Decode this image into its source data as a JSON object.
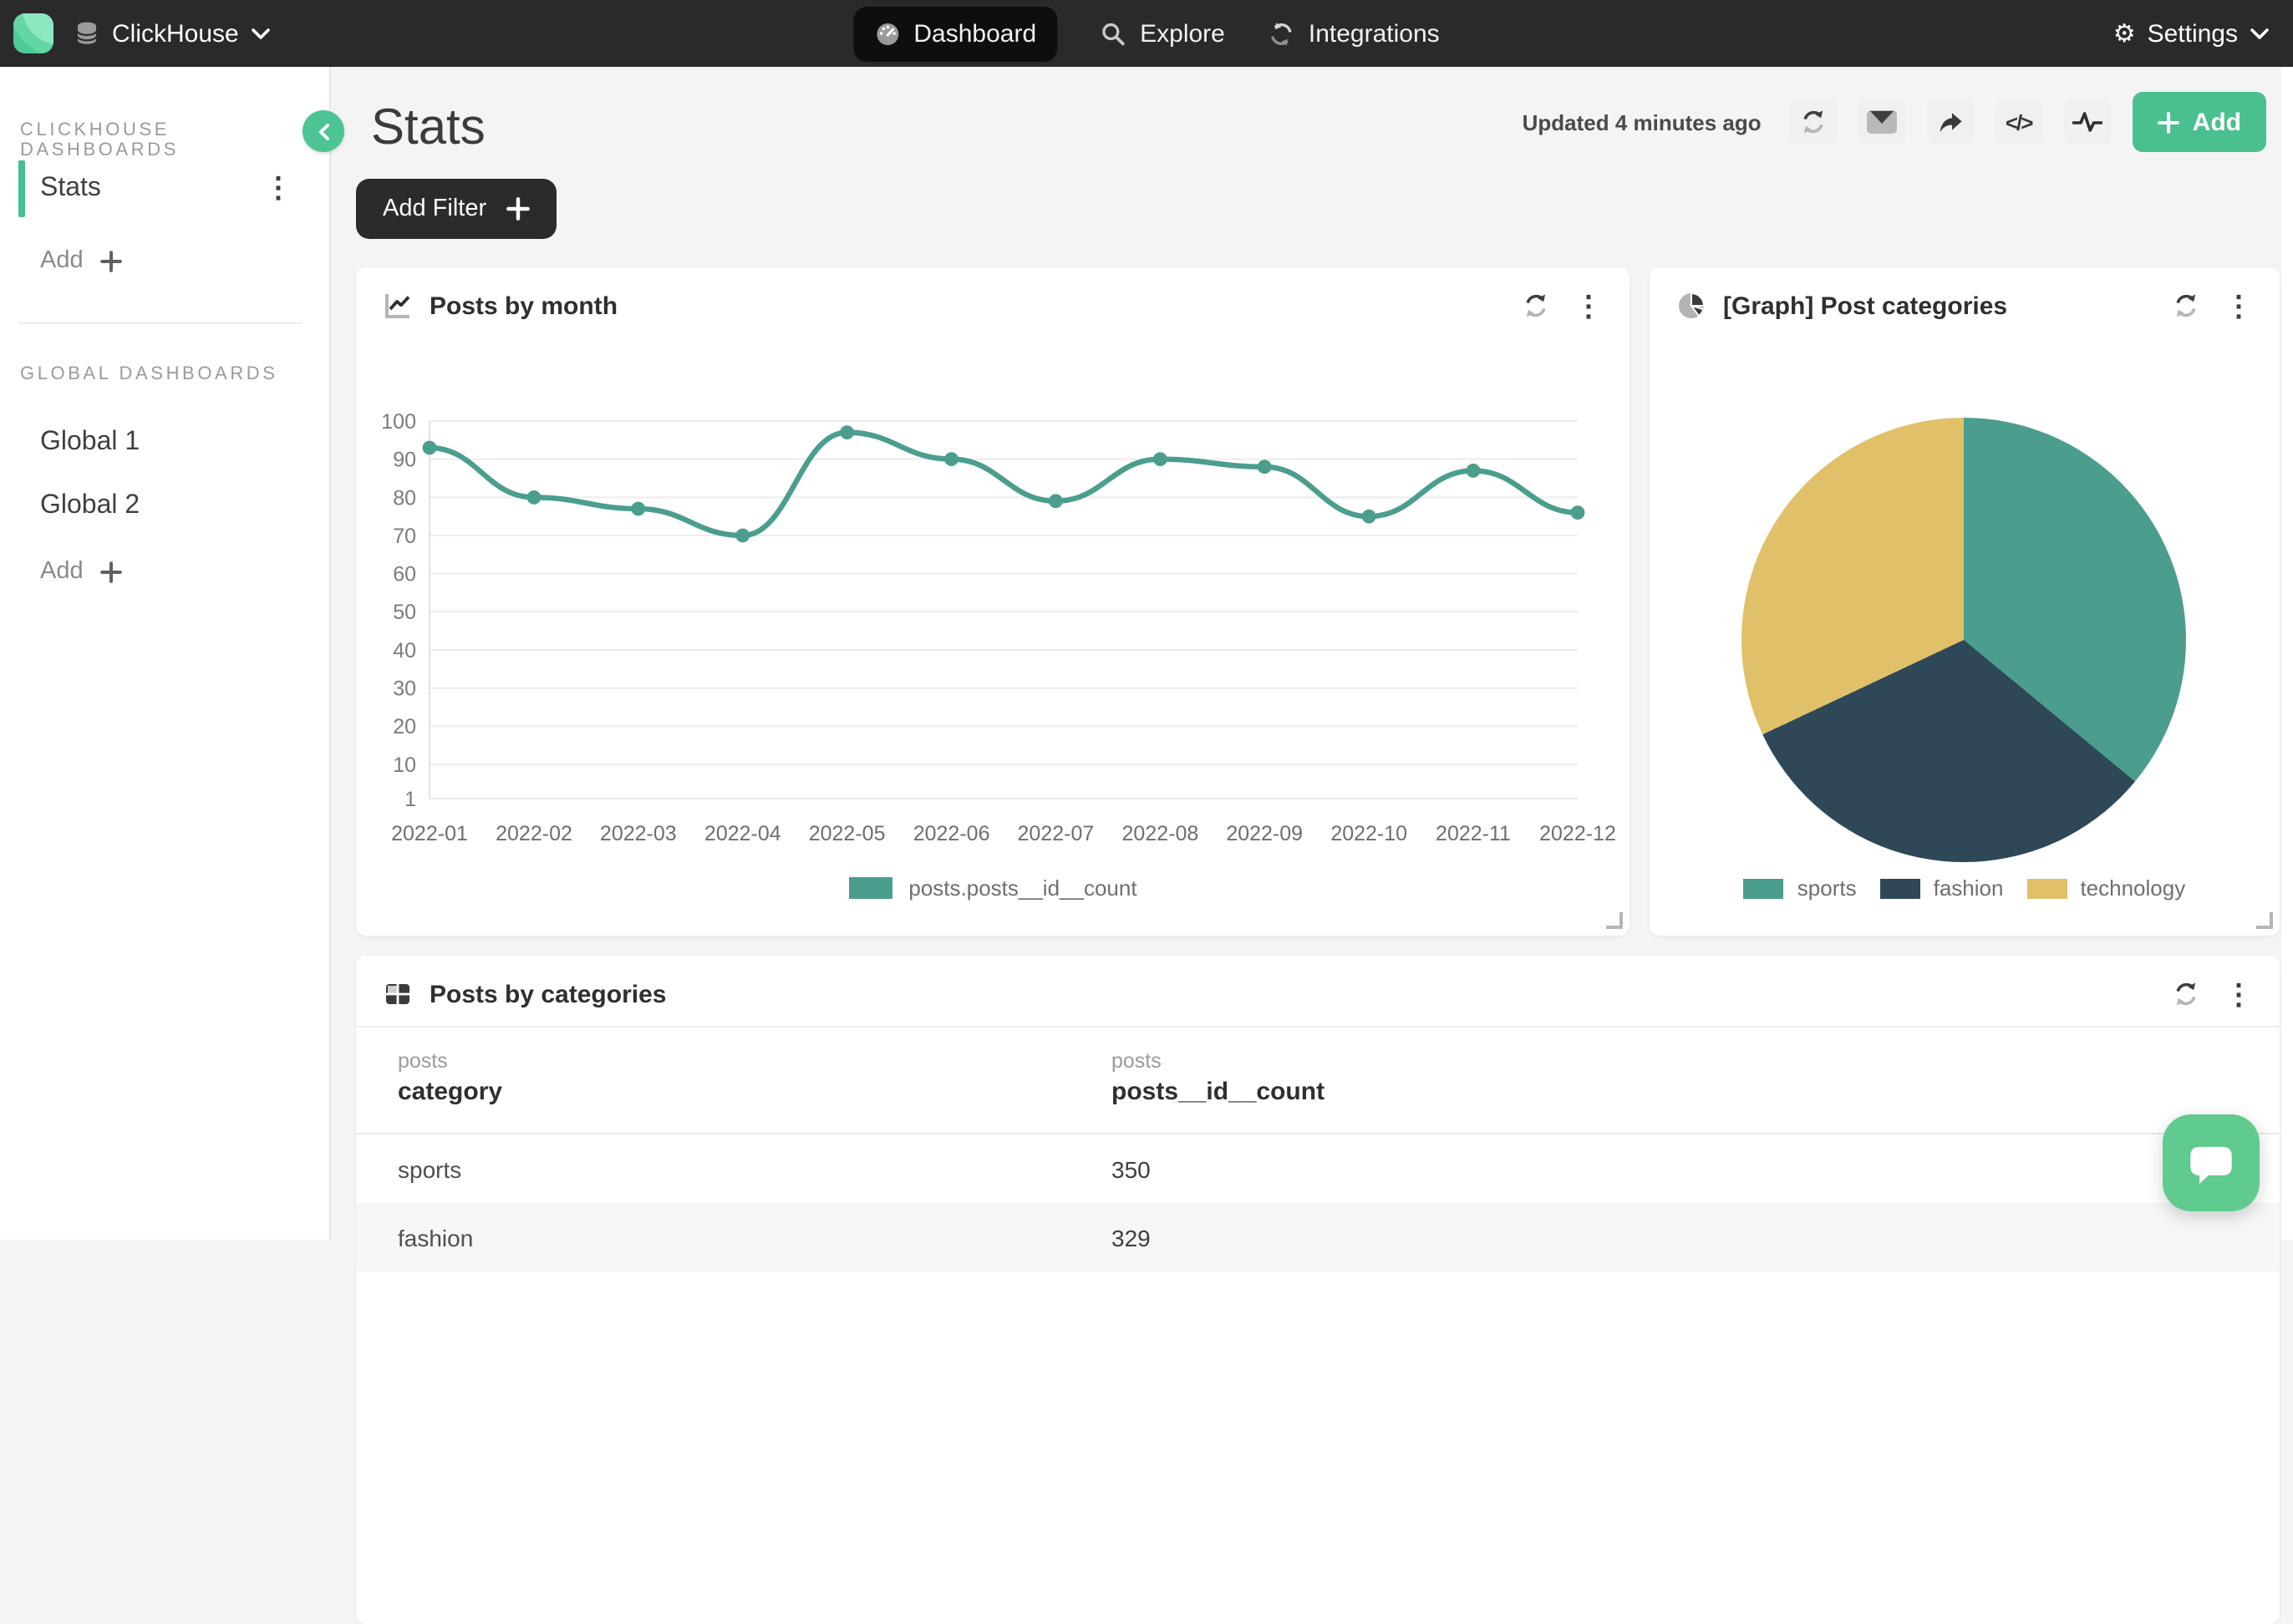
{
  "navbar": {
    "brand": "ClickHouse",
    "items": [
      {
        "label": "Dashboard",
        "active": true
      },
      {
        "label": "Explore",
        "active": false
      },
      {
        "label": "Integrations",
        "active": false
      }
    ],
    "settings_label": "Settings"
  },
  "sidebar": {
    "section1_title": "CLICKHOUSE DASHBOARDS",
    "section1_items": [
      {
        "label": "Stats",
        "active": true
      }
    ],
    "section1_add": "Add",
    "section2_title": "GLOBAL DASHBOARDS",
    "section2_items": [
      {
        "label": "Global 1"
      },
      {
        "label": "Global 2"
      }
    ],
    "section2_add": "Add"
  },
  "header": {
    "title": "Stats",
    "updated": "Updated 4 minutes ago",
    "add_label": "Add"
  },
  "filter_bar": {
    "add_filter_label": "Add Filter"
  },
  "cards": {
    "line": {
      "title": "Posts by month"
    },
    "pie": {
      "title": "[Graph] Post categories"
    },
    "table": {
      "title": "Posts by categories"
    }
  },
  "icons": {
    "gear": "⚙",
    "kebab": "⋮",
    "code": "</>"
  },
  "colors": {
    "accent_teal": "#4bc08f",
    "chart_teal": "#4b9e8e",
    "navy": "#2e4857",
    "gold": "#e0c169",
    "navbar_bg": "#2a2a2a",
    "page_bg": "#f4f4f4"
  },
  "chart_data": [
    {
      "id": "posts-by-month",
      "type": "line",
      "title": "Posts by month",
      "x": [
        "2022-01",
        "2022-02",
        "2022-03",
        "2022-04",
        "2022-05",
        "2022-06",
        "2022-07",
        "2022-08",
        "2022-09",
        "2022-10",
        "2022-11",
        "2022-12"
      ],
      "series": [
        {
          "name": "posts.posts__id__count",
          "color": "#4b9e8e",
          "values": [
            93,
            80,
            77,
            70,
            97,
            90,
            79,
            90,
            88,
            75,
            87,
            76
          ]
        }
      ],
      "ylim": [
        1,
        100
      ],
      "yticks": [
        100,
        90,
        80,
        70,
        60,
        50,
        40,
        30,
        20,
        10,
        1
      ],
      "grid": true,
      "legend_position": "bottom"
    },
    {
      "id": "post-categories",
      "type": "pie",
      "title": "[Graph] Post categories",
      "slices": [
        {
          "label": "sports",
          "percent": 36,
          "color": "#4b9e8e"
        },
        {
          "label": "fashion",
          "percent": 32,
          "color": "#2e4857"
        },
        {
          "label": "technology",
          "percent": 32,
          "color": "#e0c169"
        }
      ],
      "legend_position": "bottom"
    },
    {
      "id": "posts-by-categories",
      "type": "table",
      "title": "Posts by categories",
      "column_groups": [
        "posts",
        "posts"
      ],
      "columns": [
        "category",
        "posts__id__count"
      ],
      "rows": [
        [
          "sports",
          "350"
        ],
        [
          "fashion",
          "329"
        ]
      ]
    }
  ]
}
